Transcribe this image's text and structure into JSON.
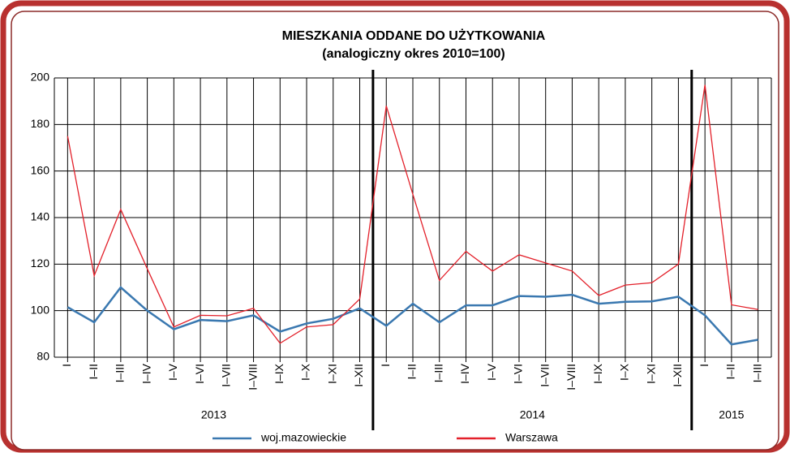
{
  "chart_data": {
    "type": "line",
    "title": "MIESZKANIA ODDANE DO UŻYTKOWANIA",
    "subtitle": "(analogiczny okres 2010=100)",
    "categories": [
      "I",
      "I–II",
      "I–III",
      "I–IV",
      "I–V",
      "I–VI",
      "I–VII",
      "I–VIII",
      "I–IX",
      "I–X",
      "I–XI",
      "I–XII",
      "I",
      "I–II",
      "I–III",
      "I–IV",
      "I–V",
      "I–VI",
      "I–VII",
      "I–VIII",
      "I–IX",
      "I–X",
      "I–XI",
      "I–XII",
      "I",
      "I–II",
      "I–III"
    ],
    "year_groups": [
      {
        "label": "2013",
        "count": 12
      },
      {
        "label": "2014",
        "count": 12
      },
      {
        "label": "2015",
        "count": 3
      }
    ],
    "series": [
      {
        "name": "woj.mazowieckie",
        "color": "#3a78b0",
        "values": [
          101.5,
          95,
          110,
          100,
          92,
          96,
          95.5,
          98,
          91,
          94.5,
          96.5,
          101,
          93.5,
          103,
          95,
          102.3,
          102.3,
          106.3,
          106,
          106.8,
          103,
          103.8,
          104,
          106,
          98,
          85.5,
          87.5
        ]
      },
      {
        "name": "Warszawa",
        "color": "#e3202a",
        "values": [
          175,
          115,
          143.5,
          118,
          93,
          98,
          97.8,
          101,
          86,
          93,
          94,
          105,
          188,
          150,
          113,
          125.5,
          117,
          124,
          120.5,
          117,
          106.5,
          111,
          112,
          120,
          197,
          102.5,
          100.5
        ]
      }
    ],
    "ylim": [
      80,
      200
    ],
    "yticks": [
      80,
      100,
      120,
      140,
      160,
      180,
      200
    ],
    "grid": true
  }
}
